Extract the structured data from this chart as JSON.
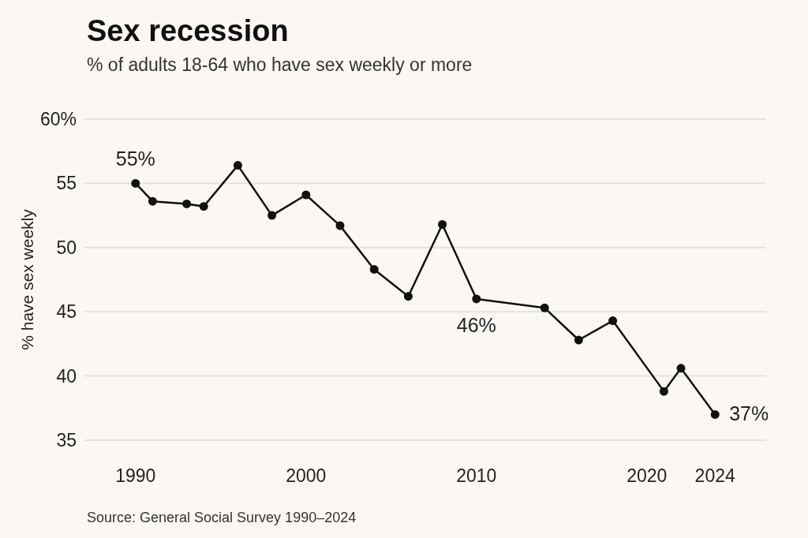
{
  "chart_data": {
    "type": "line",
    "title": "Sex recession",
    "subtitle": "% of adults 18-64 who have sex weekly or more",
    "ylabel": "% have sex weekly",
    "x": [
      1990,
      1991,
      1993,
      1994,
      1996,
      1998,
      2000,
      2002,
      2004,
      2006,
      2008,
      2010,
      2014,
      2016,
      2018,
      2021,
      2022,
      2024
    ],
    "series": [
      {
        "color": "#111111",
        "values": [
          55,
          53.6,
          53.4,
          53.2,
          56.4,
          52.5,
          54.1,
          51.7,
          48.3,
          46.2,
          51.8,
          46,
          45.3,
          42.8,
          44.3,
          38.8,
          40.6,
          37
        ]
      }
    ],
    "xlim": [
      1987,
      2027
    ],
    "ylim": [
      35,
      60
    ],
    "xticks": [
      1990,
      2000,
      2010,
      2020,
      2024
    ],
    "yticks": [
      35,
      40,
      45,
      50,
      55,
      {
        "value": 60,
        "label": "60%"
      }
    ],
    "grid": "y",
    "marker": "circle",
    "line_style": "solid",
    "annotations": [
      {
        "text": "55%",
        "x": 1990,
        "y": 55
      },
      {
        "text": "46%",
        "x": 2010,
        "y": 46
      },
      {
        "text": "37%",
        "x": 2024,
        "y": 37
      },
      "Source: General Social Survey 1990–2024"
    ]
  }
}
